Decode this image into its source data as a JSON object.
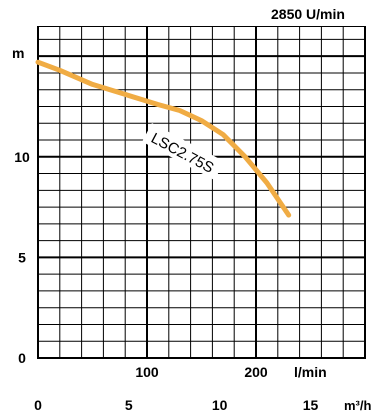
{
  "chart_data": {
    "type": "line",
    "speed_label": "2850 U/min",
    "ylabel": "m",
    "y_ticks": [
      {
        "value": 0,
        "label": "0"
      },
      {
        "value": 5,
        "label": "5"
      },
      {
        "value": 10,
        "label": "10"
      }
    ],
    "ylim": [
      0,
      16.5
    ],
    "x_flow_lmin_label": "l/min",
    "x_flow_lmin_ticks": [
      {
        "value": 100,
        "label": "100"
      },
      {
        "value": 200,
        "label": "200"
      }
    ],
    "x_flow_m3h_label": "m³/h",
    "x_flow_m3h_ticks": [
      {
        "value": 0,
        "label": "0"
      },
      {
        "value": 5,
        "label": "5"
      },
      {
        "value": 10,
        "label": "10"
      },
      {
        "value": 15,
        "label": "15"
      }
    ],
    "xlim_lmin": [
      0,
      300
    ],
    "grid": true,
    "series": [
      {
        "name": "LSC2.75S",
        "color": "#f0ac44",
        "x_lmin": [
          0,
          20,
          50,
          80,
          110,
          130,
          150,
          170,
          190,
          210,
          230
        ],
        "y_m": [
          14.7,
          14.3,
          13.6,
          13.1,
          12.6,
          12.3,
          11.8,
          11.1,
          10.0,
          8.7,
          7.1
        ]
      }
    ]
  }
}
